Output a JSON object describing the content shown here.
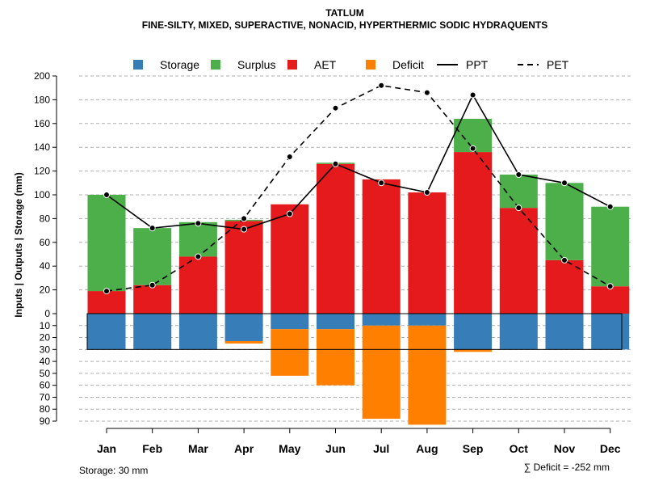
{
  "chart_data": {
    "type": "bar",
    "title": "TATLUM",
    "subtitle": "FINE-SILTY, MIXED, SUPERACTIVE, NONACID, HYPERTHERMIC SODIC HYDRAQUENTS",
    "ylabel": "Inputs | Outputs | Storage    (mm)",
    "categories": [
      "Jan",
      "Feb",
      "Mar",
      "Apr",
      "May",
      "Jun",
      "Jul",
      "Aug",
      "Sep",
      "Oct",
      "Nov",
      "Dec"
    ],
    "ylim_upper": [
      0,
      200
    ],
    "ylim_lower": [
      0,
      90
    ],
    "yticks_upper": [
      "0",
      "20",
      "40",
      "60",
      "80",
      "100",
      "120",
      "140",
      "160",
      "180",
      "200"
    ],
    "yticks_lower": [
      "10",
      "20",
      "30",
      "40",
      "50",
      "60",
      "70",
      "80",
      "90"
    ],
    "legend": [
      {
        "name": "Storage",
        "kind": "box",
        "color": "#377EB8"
      },
      {
        "name": "Surplus",
        "kind": "box",
        "color": "#4DAF4A"
      },
      {
        "name": "AET",
        "kind": "box",
        "color": "#E41A1C"
      },
      {
        "name": "Deficit",
        "kind": "box",
        "color": "#FF7F00"
      },
      {
        "name": "PPT",
        "kind": "solid"
      },
      {
        "name": "PET",
        "kind": "dashed"
      }
    ],
    "series": [
      {
        "name": "AET",
        "color": "#E41A1C",
        "values": [
          19,
          24,
          48,
          78,
          92,
          126,
          113,
          102,
          136,
          89,
          45,
          23
        ]
      },
      {
        "name": "Surplus",
        "color": "#4DAF4A",
        "values": [
          81,
          48,
          29,
          1,
          0,
          1,
          0,
          0,
          28,
          28,
          65,
          67
        ]
      },
      {
        "name": "Storage",
        "color": "#377EB8",
        "values": [
          30,
          30,
          30,
          23,
          13,
          13,
          10,
          10,
          30,
          30,
          30,
          30
        ]
      },
      {
        "name": "Deficit",
        "color": "#FF7F00",
        "values": [
          0,
          0,
          0,
          2,
          39,
          47,
          78,
          83,
          2,
          0,
          0,
          0
        ]
      },
      {
        "name": "PPT",
        "values": [
          100,
          72,
          76,
          71,
          84,
          126,
          110,
          102,
          184,
          117,
          110,
          90
        ]
      },
      {
        "name": "PET",
        "values": [
          19,
          24,
          48,
          80,
          132,
          173,
          192,
          186,
          139,
          89,
          45,
          23
        ]
      }
    ],
    "storage_capacity_label": "Storage: 30 mm",
    "deficit_total_label": "∑ Deficit = -252 mm"
  }
}
